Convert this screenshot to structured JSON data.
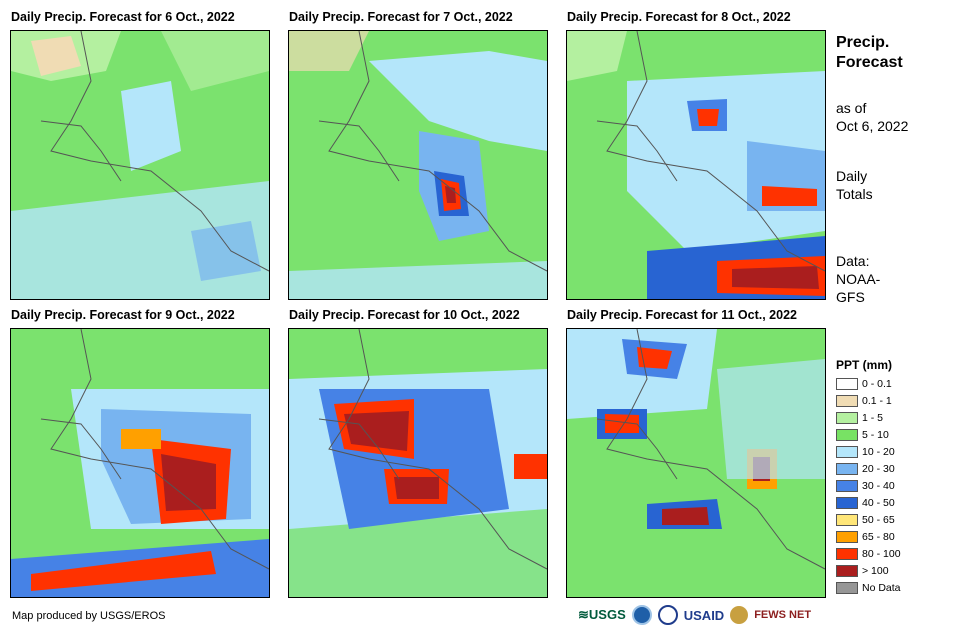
{
  "panels": [
    {
      "title": "Daily Precip. Forecast for 6 Oct., 2022"
    },
    {
      "title": "Daily Precip. Forecast for 7 Oct., 2022"
    },
    {
      "title": "Daily Precip. Forecast for 8 Oct., 2022"
    },
    {
      "title": "Daily Precip. Forecast for 9 Oct., 2022"
    },
    {
      "title": "Daily Precip. Forecast for 10 Oct., 2022"
    },
    {
      "title": "Daily Precip. Forecast for 11 Oct., 2022"
    }
  ],
  "side": {
    "title_line1": "Precip.",
    "title_line2": "Forecast",
    "asof_line1": "as of",
    "asof_line2": "Oct 6, 2022",
    "totals_line1": "Daily",
    "totals_line2": "Totals",
    "data_line1": "Data:",
    "data_line2": "NOAA-",
    "data_line3": "GFS"
  },
  "legend": {
    "title": "PPT (mm)",
    "items": [
      {
        "label": "0 - 0.1",
        "color": "#ffffff"
      },
      {
        "label": "0.1 - 1",
        "color": "#f0dcb4"
      },
      {
        "label": "1 - 5",
        "color": "#b4f0a0"
      },
      {
        "label": "5 - 10",
        "color": "#78e264"
      },
      {
        "label": "10 - 20",
        "color": "#b4e6fa"
      },
      {
        "label": "20 - 30",
        "color": "#78b4f0"
      },
      {
        "label": "30 - 40",
        "color": "#4682e6"
      },
      {
        "label": "40 - 50",
        "color": "#2864d2"
      },
      {
        "label": "50 - 65",
        "color": "#ffe678"
      },
      {
        "label": "65 - 80",
        "color": "#ffa000"
      },
      {
        "label": "80 - 100",
        "color": "#ff3200"
      },
      {
        "label": "> 100",
        "color": "#aa1e1e"
      },
      {
        "label": "No Data",
        "color": "#969696"
      }
    ]
  },
  "footer": {
    "credit": "Map produced by USGS/EROS"
  },
  "logos": {
    "usgs": "USGS",
    "usaid": "USAID",
    "fewsnet": "FEWS NET"
  }
}
